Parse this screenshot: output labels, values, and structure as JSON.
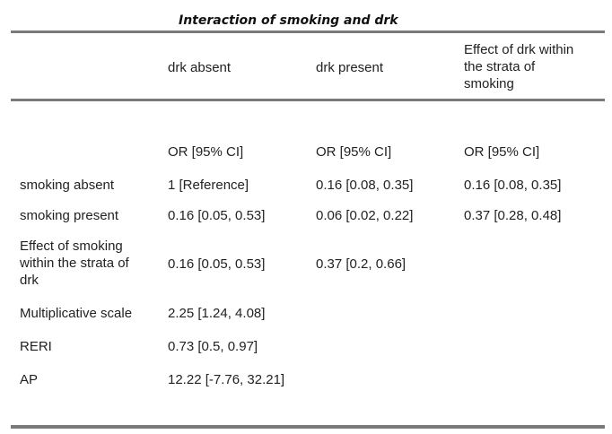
{
  "table": {
    "title": "Interaction of smoking and drk",
    "header": {
      "col1": "drk absent",
      "col2": "drk present",
      "col3_lines": [
        "Effect of drk within",
        "the strata of",
        "smoking"
      ]
    },
    "subheader": {
      "col1": "OR [95% CI]",
      "col2": "OR [95% CI]",
      "col3": "OR [95% CI]"
    },
    "rows": [
      {
        "label_lines": [
          "smoking absent"
        ],
        "col1": "1 [Reference]",
        "col2": "0.16 [0.08, 0.35]",
        "col3": "0.16 [0.08, 0.35]"
      },
      {
        "label_lines": [
          "smoking present"
        ],
        "col1": "0.16 [0.05, 0.53]",
        "col2": "0.06 [0.02, 0.22]",
        "col3": "0.37 [0.28, 0.48]"
      },
      {
        "label_lines": [
          "Effect of smoking",
          "within the strata of",
          "drk"
        ],
        "col1": "0.16 [0.05, 0.53]",
        "col2": "0.37 [0.2, 0.66]",
        "col3": ""
      },
      {
        "label_lines": [
          "Multiplicative scale"
        ],
        "col1": "2.25 [1.24, 4.08]",
        "col2": "",
        "col3": ""
      },
      {
        "label_lines": [
          "RERI"
        ],
        "col1": "0.73 [0.5, 0.97]",
        "col2": "",
        "col3": ""
      },
      {
        "label_lines": [
          "AP"
        ],
        "col1": "12.22 [-7.76, 32.21]",
        "col2": "",
        "col3": ""
      }
    ]
  }
}
